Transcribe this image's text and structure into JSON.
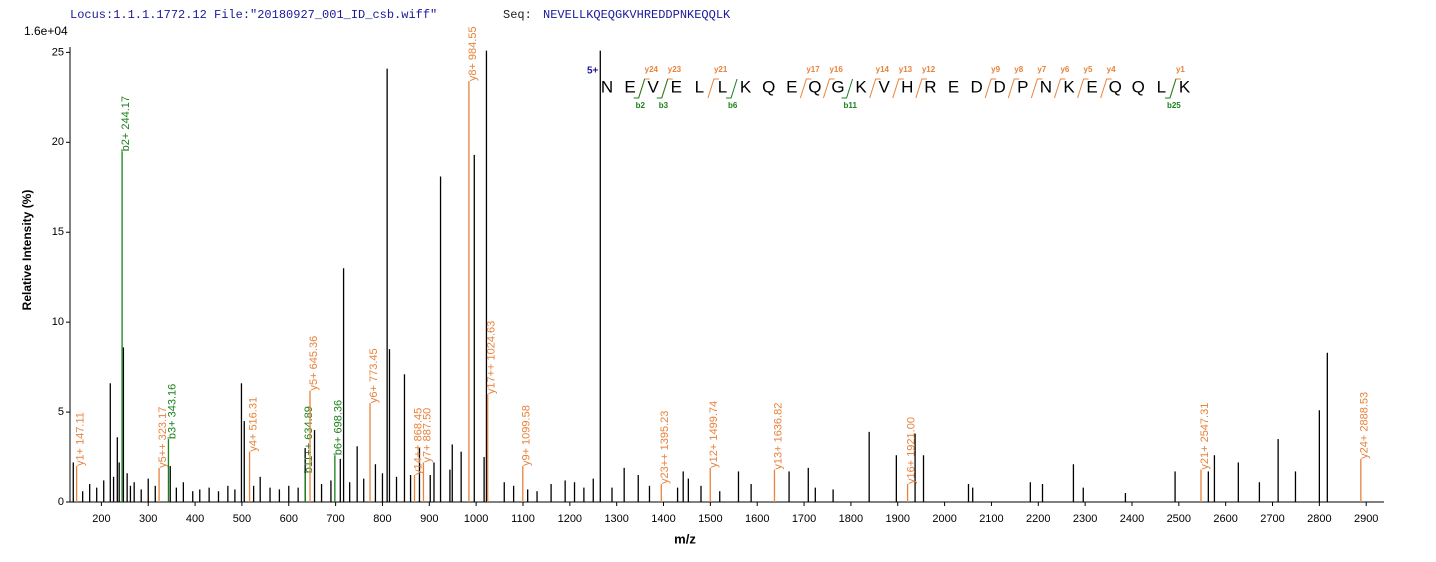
{
  "header": {
    "locus": "Locus:1.1.1.1772.12 File:\"20180927_001_ID_csb.wiff\"",
    "seq_label": "Seq:",
    "sequence": "NEVELLKQEQGKVHREDDPNKEQQLK"
  },
  "chart_data": {
    "type": "stem",
    "y_label": "Relative  Intensity (%)",
    "x_label": "m/z",
    "y_scale_note": "1.6e+04",
    "xlim": [
      133,
      2938
    ],
    "ylim": [
      0,
      25.3
    ],
    "xticks": [
      200,
      300,
      400,
      500,
      600,
      700,
      800,
      900,
      1000,
      1100,
      1200,
      1300,
      1400,
      1500,
      1600,
      1700,
      1800,
      1900,
      2000,
      2100,
      2200,
      2300,
      2400,
      2500,
      2600,
      2700,
      2800,
      2900
    ],
    "yticks": [
      0,
      5,
      10,
      15,
      20,
      25
    ],
    "color": "#000000",
    "x": [
      140,
      160,
      175,
      190,
      205,
      219,
      226,
      234,
      238,
      247,
      255,
      262,
      270,
      285,
      300,
      315,
      347,
      360,
      375,
      395,
      410,
      430,
      450,
      470,
      485,
      499,
      505,
      525,
      539,
      560,
      580,
      600,
      620,
      635,
      655,
      670,
      690,
      710,
      717,
      730,
      746,
      760,
      785,
      800,
      810,
      815,
      830,
      847,
      860,
      879,
      902,
      910,
      924,
      944,
      949,
      968,
      996,
      1017,
      1022,
      1060,
      1080,
      1110,
      1130,
      1160,
      1190,
      1210,
      1230,
      1250,
      1265,
      1290,
      1316,
      1346,
      1370,
      1430,
      1442,
      1453,
      1480,
      1520,
      1560,
      1587,
      1668,
      1709,
      1724,
      1762,
      1839,
      1897,
      1937,
      1955,
      2051,
      2060,
      2183,
      2209,
      2275,
      2296,
      2386,
      2492,
      2563,
      2576,
      2627,
      2672,
      2712,
      2749,
      2800,
      2817
    ],
    "values": [
      2.2,
      0.6,
      1.0,
      0.8,
      1.2,
      6.6,
      1.4,
      3.6,
      2.2,
      8.6,
      1.6,
      0.9,
      1.1,
      0.7,
      1.3,
      0.9,
      2.0,
      0.8,
      1.1,
      0.6,
      0.7,
      0.8,
      0.6,
      0.9,
      0.7,
      6.6,
      4.5,
      0.9,
      1.4,
      0.8,
      0.7,
      0.9,
      0.8,
      3.0,
      4.0,
      1.0,
      1.2,
      2.4,
      13.0,
      1.1,
      3.1,
      1.3,
      2.1,
      1.6,
      24.1,
      8.5,
      1.4,
      7.1,
      1.5,
      3.0,
      1.5,
      2.2,
      18.1,
      1.8,
      3.2,
      2.8,
      19.3,
      2.5,
      25.1,
      1.1,
      0.9,
      0.7,
      0.6,
      1.0,
      1.2,
      1.1,
      0.8,
      1.3,
      25.1,
      0.8,
      1.9,
      1.5,
      0.9,
      0.8,
      1.7,
      1.3,
      0.9,
      0.6,
      1.7,
      1.0,
      1.7,
      1.9,
      0.8,
      0.7,
      3.9,
      2.6,
      3.8,
      2.6,
      1.0,
      0.8,
      1.1,
      1.0,
      2.1,
      0.8,
      0.5,
      1.7,
      1.7,
      2.6,
      2.2,
      1.1,
      3.5,
      1.7,
      5.1,
      8.3
    ],
    "annotations": [
      {
        "label": "y1+ 147.11",
        "mz": 147.11,
        "intensity": 2.0,
        "color": "#e8823c"
      },
      {
        "label": "b2+ 244.17",
        "mz": 244.17,
        "intensity": 19.5,
        "color": "#1a7f1a"
      },
      {
        "label": "y5++ 323.17",
        "mz": 323.17,
        "intensity": 1.9,
        "color": "#e8823c"
      },
      {
        "label": "b3+ 343.16",
        "mz": 343.16,
        "intensity": 3.5,
        "color": "#1a7f1a"
      },
      {
        "label": "y4+ 516.31",
        "mz": 516.31,
        "intensity": 2.8,
        "color": "#e8823c"
      },
      {
        "label": "b11++ 634.89",
        "mz": 634.89,
        "intensity": 1.6,
        "color": "#1a7f1a"
      },
      {
        "label": "y5+ 645.36",
        "mz": 645.36,
        "intensity": 6.2,
        "color": "#e8823c"
      },
      {
        "label": "b6+ 698.36",
        "mz": 698.36,
        "intensity": 2.6,
        "color": "#1a7f1a"
      },
      {
        "label": "y6+ 773.45",
        "mz": 773.45,
        "intensity": 5.5,
        "color": "#e8823c"
      },
      {
        "label": "y14++ 868.45",
        "mz": 868.45,
        "intensity": 1.5,
        "color": "#e8823c"
      },
      {
        "label": "y7+ 887.50",
        "mz": 887.5,
        "intensity": 2.2,
        "color": "#e8823c"
      },
      {
        "label": "y8+ 984.55",
        "mz": 984.55,
        "intensity": 23.4,
        "color": "#e8823c"
      },
      {
        "label": "y17++ 1024.63",
        "mz": 1024.63,
        "intensity": 6.0,
        "color": "#e8823c"
      },
      {
        "label": "y9+ 1099.58",
        "mz": 1099.58,
        "intensity": 2.0,
        "color": "#e8823c"
      },
      {
        "label": "y23++ 1395.23",
        "mz": 1395.23,
        "intensity": 1.0,
        "color": "#e8823c"
      },
      {
        "label": "y12+ 1499.74",
        "mz": 1499.74,
        "intensity": 1.9,
        "color": "#e8823c"
      },
      {
        "label": "y13+ 1636.82",
        "mz": 1636.82,
        "intensity": 1.8,
        "color": "#e8823c"
      },
      {
        "label": "y16+ 1921.00",
        "mz": 1921.0,
        "intensity": 1.0,
        "color": "#e8823c"
      },
      {
        "label": "y21+ 2547.31",
        "mz": 2547.31,
        "intensity": 1.8,
        "color": "#e8823c"
      },
      {
        "label": "y24+ 2888.53",
        "mz": 2888.53,
        "intensity": 2.4,
        "color": "#e8823c"
      }
    ]
  },
  "fragment_map": {
    "charge": "5+",
    "letters": [
      "N",
      "E",
      "V",
      "E",
      "L",
      "L",
      "K",
      "Q",
      "E",
      "Q",
      "G",
      "K",
      "V",
      "H",
      "R",
      "E",
      "D",
      "D",
      "P",
      "N",
      "K",
      "E",
      "Q",
      "Q",
      "L",
      "K"
    ],
    "y_ions": [
      "y24",
      "y23",
      "y21",
      "y17",
      "y16",
      "y14",
      "y13",
      "y12",
      "y9",
      "y8",
      "y7",
      "y6",
      "y5",
      "y4",
      "y1"
    ],
    "b_ions": [
      "b2",
      "b3",
      "b6",
      "b11",
      "b25"
    ]
  }
}
